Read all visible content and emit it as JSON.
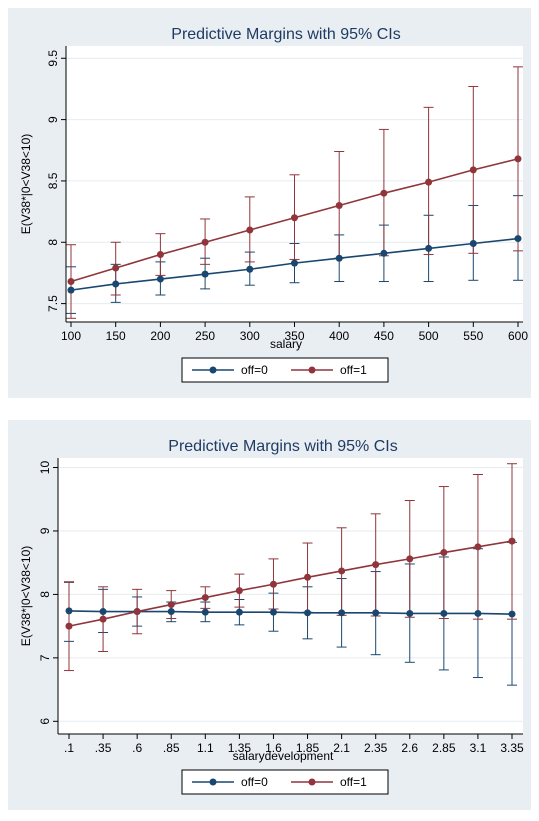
{
  "chart_data": [
    {
      "type": "line",
      "title": "Predictive Margins with 95% CIs",
      "xlabel": "salary",
      "ylabel": "E(V38*|0<V38<10)",
      "x": [
        100,
        150,
        200,
        250,
        300,
        350,
        400,
        450,
        500,
        550,
        600
      ],
      "x_tick_labels": [
        "100",
        "150",
        "200",
        "250",
        "300",
        "350",
        "400",
        "450",
        "500",
        "550",
        "600"
      ],
      "ylim": [
        7.35,
        9.6
      ],
      "y_ticks": [
        7.5,
        8,
        8.5,
        9,
        9.5
      ],
      "y_tick_labels": [
        "7.5",
        "8",
        "8.5",
        "9",
        "9.5"
      ],
      "grid": true,
      "legend_position": "bottom",
      "series": [
        {
          "name": "off=0",
          "color": "#1a476f",
          "values": [
            7.61,
            7.66,
            7.7,
            7.74,
            7.78,
            7.83,
            7.87,
            7.91,
            7.95,
            7.99,
            8.03
          ],
          "ci_low": [
            7.42,
            7.51,
            7.57,
            7.62,
            7.65,
            7.67,
            7.68,
            7.68,
            7.68,
            7.69,
            7.69
          ],
          "ci_high": [
            7.8,
            7.82,
            7.84,
            7.87,
            7.92,
            7.99,
            8.06,
            8.14,
            8.22,
            8.3,
            8.38
          ]
        },
        {
          "name": "off=1",
          "color": "#90353b",
          "values": [
            7.68,
            7.79,
            7.9,
            8.0,
            8.1,
            8.2,
            8.3,
            8.4,
            8.49,
            8.59,
            8.68
          ],
          "ci_low": [
            7.38,
            7.57,
            7.73,
            7.82,
            7.84,
            7.86,
            7.87,
            7.89,
            7.9,
            7.91,
            7.93
          ],
          "ci_high": [
            7.98,
            8.0,
            8.07,
            8.19,
            8.37,
            8.55,
            8.74,
            8.92,
            9.1,
            9.27,
            9.43
          ]
        }
      ]
    },
    {
      "type": "line",
      "title": "Predictive Margins with 95% CIs",
      "xlabel": "salarydevelopment",
      "ylabel": "E(V38*|0<V38<10)",
      "x": [
        0.1,
        0.35,
        0.6,
        0.85,
        1.1,
        1.35,
        1.6,
        1.85,
        2.1,
        2.35,
        2.6,
        2.85,
        3.1,
        3.35
      ],
      "x_tick_labels": [
        ".1",
        ".35",
        ".6",
        ".85",
        "1.1",
        "1.35",
        "1.6",
        "1.85",
        "2.1",
        "2.35",
        "2.6",
        "2.85",
        "3.1",
        "3.35"
      ],
      "ylim": [
        5.8,
        10.15
      ],
      "y_ticks": [
        6,
        7,
        8,
        9,
        10
      ],
      "y_tick_labels": [
        "6",
        "7",
        "8",
        "9",
        "10"
      ],
      "grid": true,
      "legend_position": "bottom",
      "series": [
        {
          "name": "off=0",
          "color": "#1a476f",
          "values": [
            7.74,
            7.73,
            7.73,
            7.73,
            7.72,
            7.72,
            7.72,
            7.71,
            7.71,
            7.71,
            7.7,
            7.7,
            7.7,
            7.69
          ],
          "ci_low": [
            7.26,
            7.4,
            7.5,
            7.57,
            7.57,
            7.52,
            7.42,
            7.3,
            7.17,
            7.05,
            6.93,
            6.81,
            6.69,
            6.57
          ],
          "ci_high": [
            8.19,
            8.08,
            7.96,
            7.88,
            7.88,
            7.92,
            8.02,
            8.12,
            8.25,
            8.36,
            8.48,
            8.59,
            8.72,
            8.82
          ]
        },
        {
          "name": "off=1",
          "color": "#90353b",
          "values": [
            7.5,
            7.61,
            7.73,
            7.84,
            7.95,
            8.06,
            8.16,
            8.27,
            8.37,
            8.47,
            8.56,
            8.66,
            8.75,
            8.84
          ],
          "ci_low": [
            6.8,
            7.1,
            7.38,
            7.62,
            7.78,
            7.8,
            7.77,
            7.72,
            7.67,
            7.66,
            7.64,
            7.62,
            7.61,
            7.61
          ],
          "ci_high": [
            8.2,
            8.12,
            8.08,
            8.06,
            8.12,
            8.32,
            8.56,
            8.81,
            9.05,
            9.27,
            9.48,
            9.7,
            9.89,
            10.06
          ]
        }
      ]
    }
  ]
}
